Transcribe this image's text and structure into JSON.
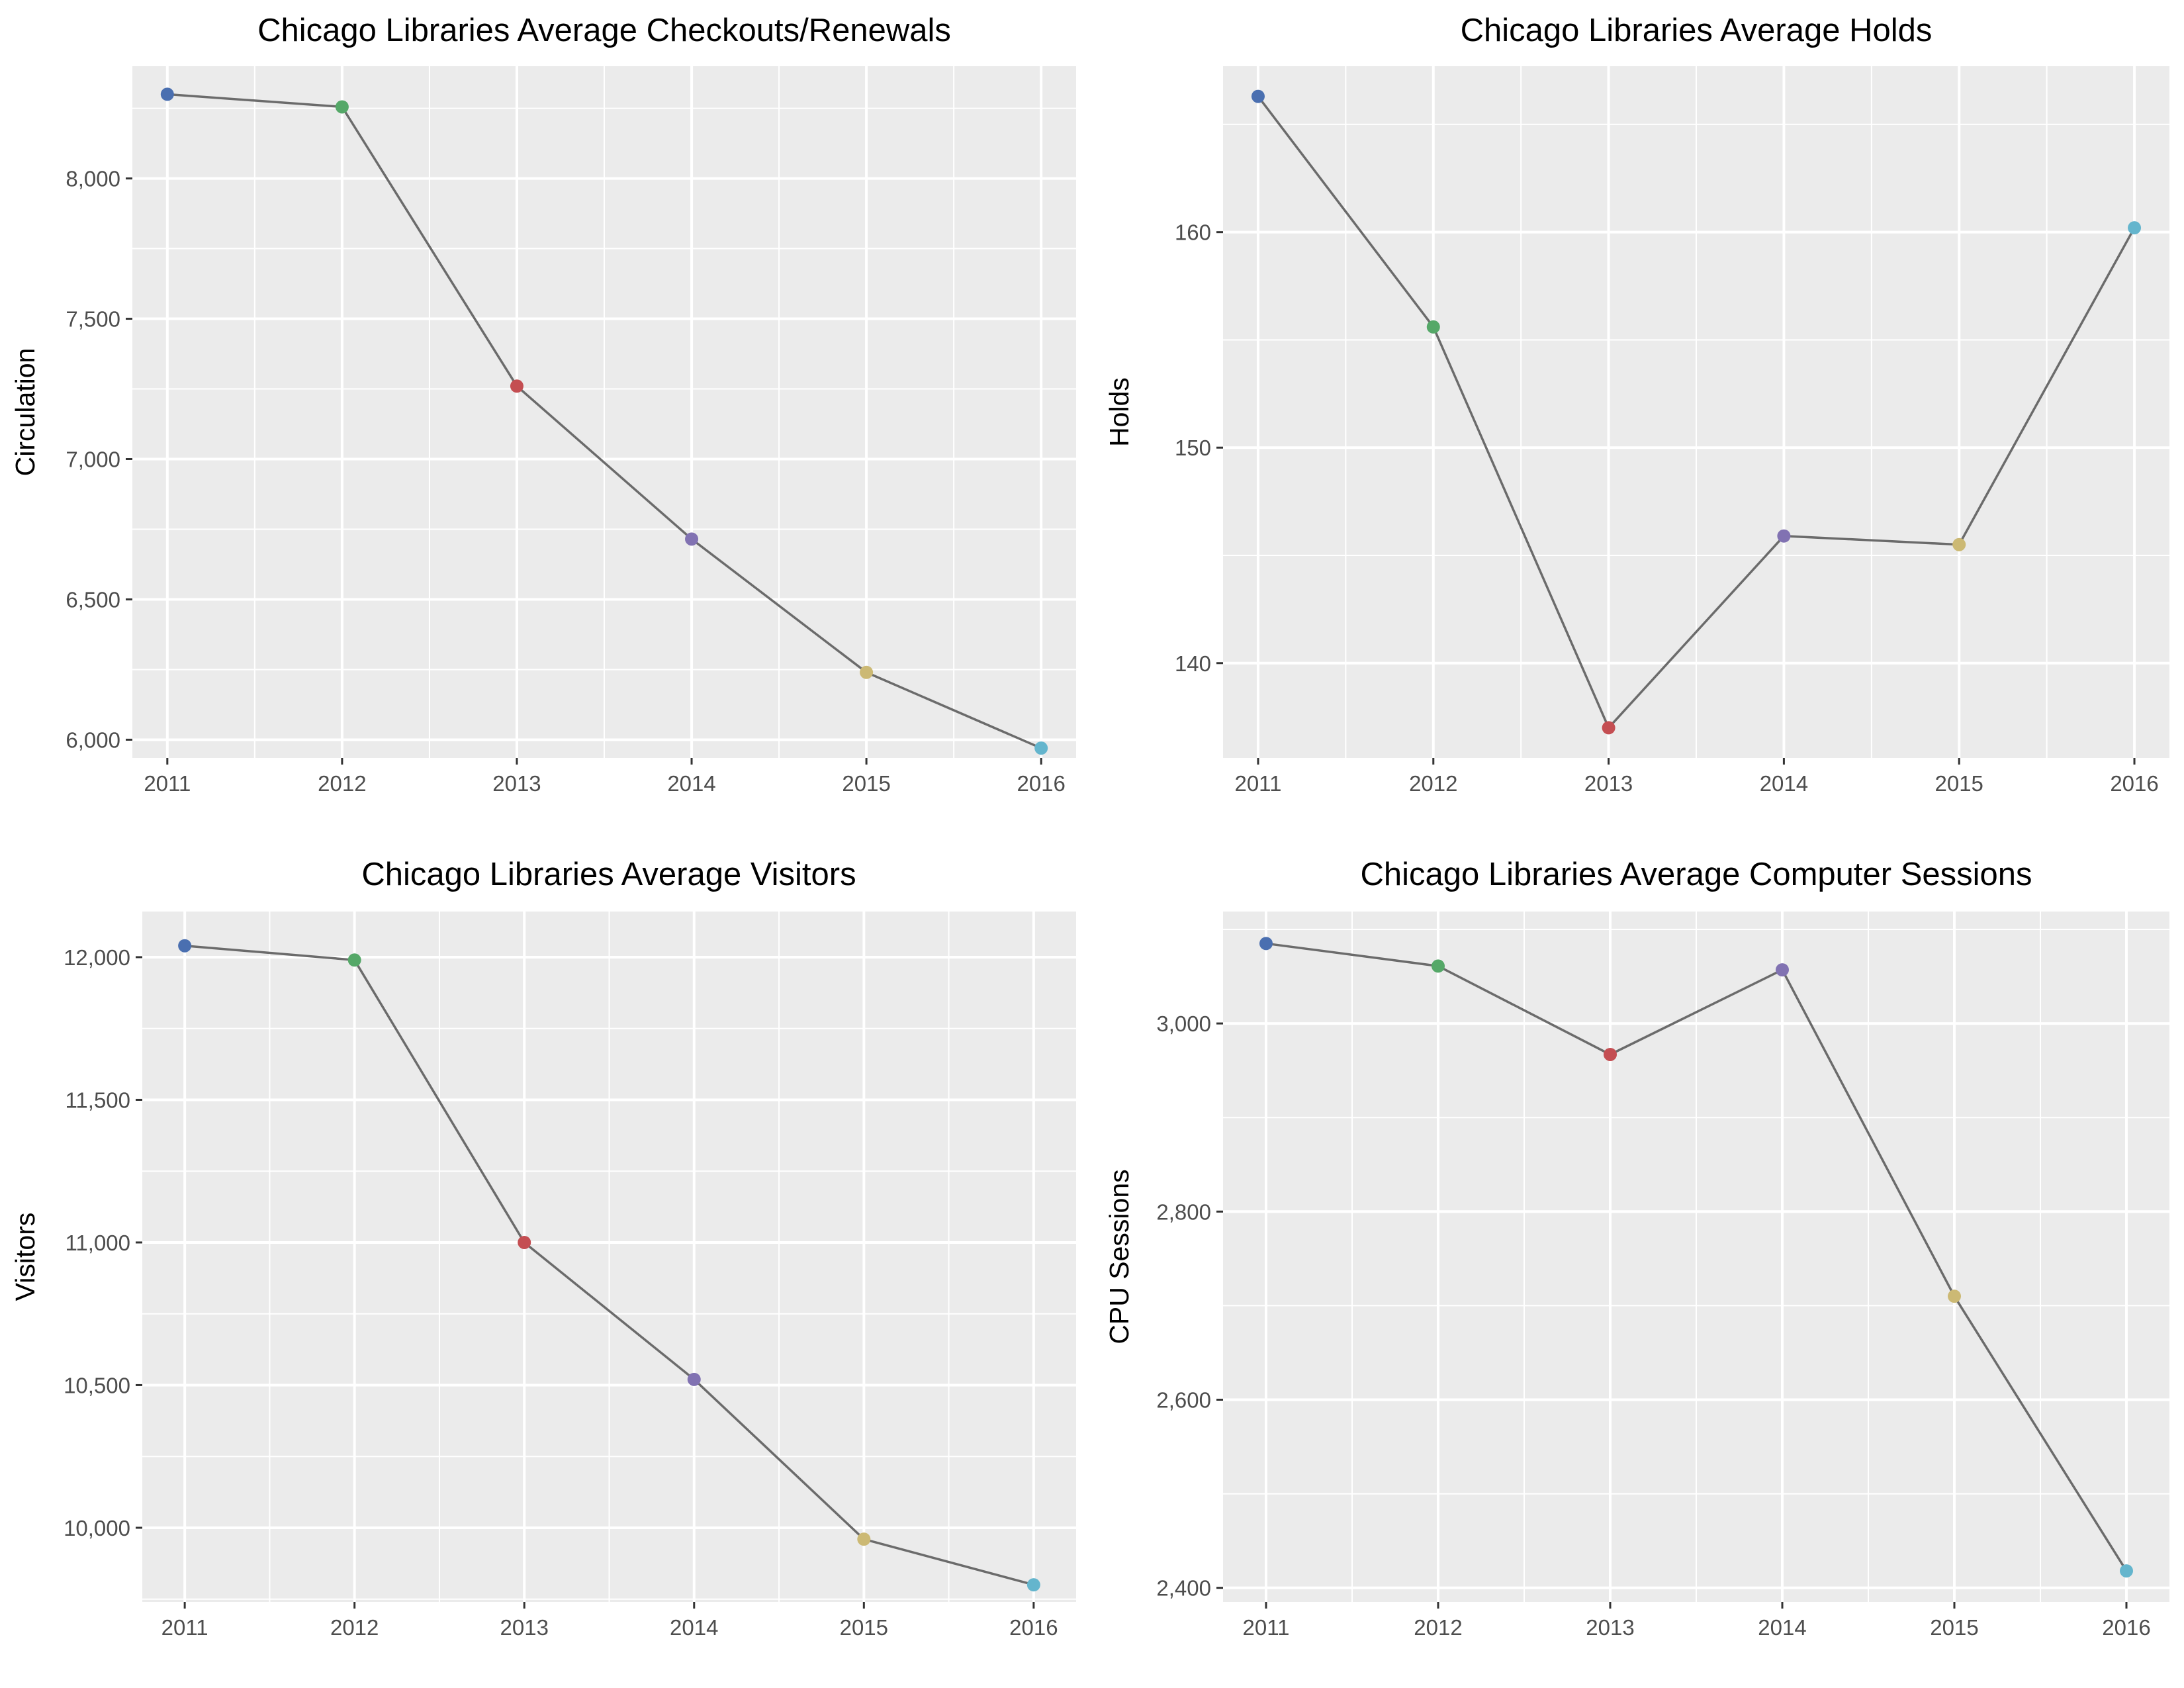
{
  "chart_data": [
    {
      "type": "line",
      "title": "Chicago Libraries Average Checkouts/Renewals",
      "xlabel": "",
      "ylabel": "Circulation",
      "x": [
        2011,
        2012,
        2013,
        2014,
        2015,
        2016
      ],
      "values": [
        8300,
        8255,
        7260,
        6715,
        6240,
        5970
      ],
      "xlim": [
        2010.8,
        2016.2
      ],
      "ylim": [
        5935,
        8400
      ],
      "yticks": [
        6000,
        6500,
        7000,
        7500,
        8000
      ],
      "ytick_labels": [
        "6,000",
        "6,500",
        "7,000",
        "7,500",
        "8,000"
      ],
      "xtick_labels": [
        "2011",
        "2012",
        "2013",
        "2014",
        "2015",
        "2016"
      ],
      "grid": true
    },
    {
      "type": "line",
      "title": "Chicago Libraries Average Holds",
      "xlabel": "",
      "ylabel": "Holds",
      "x": [
        2011,
        2012,
        2013,
        2014,
        2015,
        2016
      ],
      "values": [
        166.3,
        155.6,
        137.0,
        145.9,
        145.5,
        160.2
      ],
      "xlim": [
        2010.8,
        2016.2
      ],
      "ylim": [
        135.6,
        167.7
      ],
      "yticks": [
        140,
        150,
        160
      ],
      "ytick_labels": [
        "140",
        "150",
        "160"
      ],
      "xtick_labels": [
        "2011",
        "2012",
        "2013",
        "2014",
        "2015",
        "2016"
      ],
      "grid": true
    },
    {
      "type": "line",
      "title": "Chicago Libraries Average Visitors",
      "xlabel": "",
      "ylabel": "Visitors",
      "x": [
        2011,
        2012,
        2013,
        2014,
        2015,
        2016
      ],
      "values": [
        12040,
        11990,
        11000,
        10520,
        9960,
        9800
      ],
      "xlim": [
        2010.75,
        2016.25
      ],
      "ylim": [
        9740,
        12160
      ],
      "yticks": [
        10000,
        10500,
        11000,
        11500,
        12000
      ],
      "ytick_labels": [
        "10,000",
        "10,500",
        "11,000",
        "11,500",
        "12,000"
      ],
      "xtick_labels": [
        "2011",
        "2012",
        "2013",
        "2014",
        "2015",
        "2016"
      ],
      "grid": true
    },
    {
      "type": "line",
      "title": "Chicago Libraries Average Computer Sessions",
      "xlabel": "",
      "ylabel": "CPU Sessions",
      "x": [
        2011,
        2012,
        2013,
        2014,
        2015,
        2016
      ],
      "values": [
        3085,
        3061,
        2967,
        3057,
        2710,
        2418
      ],
      "xlim": [
        2010.75,
        2016.25
      ],
      "ylim": [
        2385,
        3119
      ],
      "yticks": [
        2400,
        2600,
        2800,
        3000
      ],
      "ytick_labels": [
        "2,400",
        "2,600",
        "2,800",
        "3,000"
      ],
      "xtick_labels": [
        "2011",
        "2012",
        "2013",
        "2014",
        "2015",
        "2016"
      ],
      "grid": true
    }
  ],
  "point_colors": [
    "#4a6fb0",
    "#55a868",
    "#c44e52",
    "#8172b2",
    "#ccb974",
    "#64b5cd"
  ],
  "line_color": "#6b6b6b",
  "panel_background": "#ebebeb",
  "grid_color": "#ffffff"
}
